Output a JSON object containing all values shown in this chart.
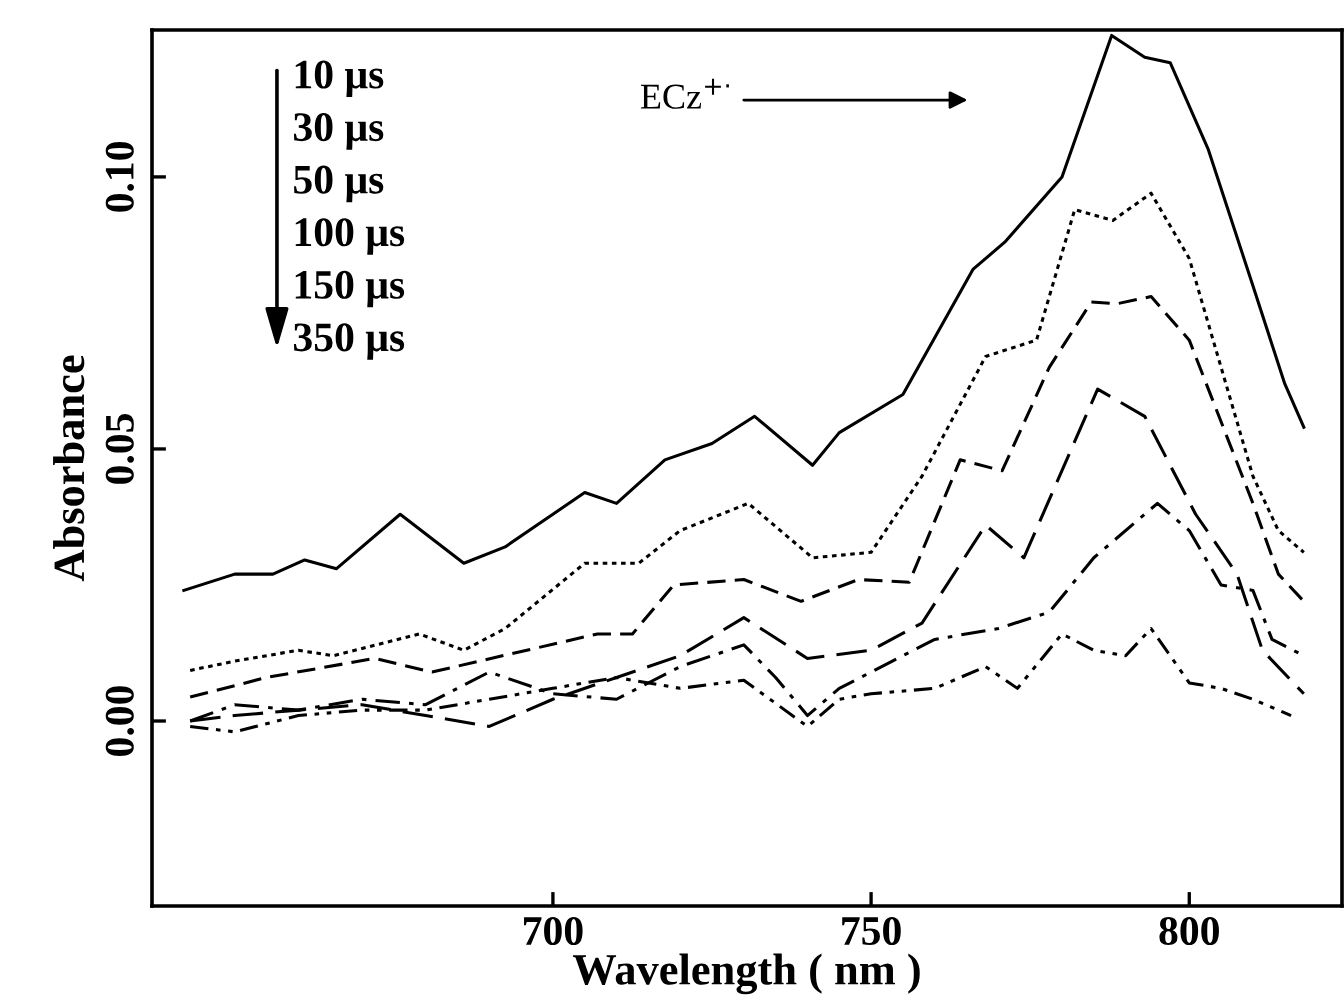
{
  "chart_data": {
    "type": "line",
    "xlabel": "Wavelength ( nm )",
    "ylabel": "Absorbance",
    "xlim": [
      637,
      824
    ],
    "ylim": [
      -0.034,
      0.127
    ],
    "xticks": [
      700,
      750,
      800
    ],
    "yticks": [
      {
        "value": 0,
        "label": "0.00"
      },
      {
        "value": 0.05,
        "label": "0.05"
      },
      {
        "value": 0.1,
        "label": "0.10"
      }
    ],
    "grid": false,
    "legend": false,
    "marker": "none",
    "annotations": [
      "10 μs",
      "30 μs",
      "50 μs",
      "100 μs",
      "150 μs",
      "350 μs",
      "ECz$^{+·}$"
    ],
    "series": [
      {
        "color": "#000000",
        "line_style": "solid",
        "x": [
          642,
          650,
          656,
          661,
          666,
          676,
          686,
          692.5,
          705,
          710,
          717.6,
          725,
          731.7,
          740.8,
          745,
          755,
          766,
          771,
          780,
          787.8,
          793,
          797,
          803,
          810,
          815,
          818
        ],
        "values": [
          0.024,
          0.027,
          0.027,
          0.0296,
          0.028,
          0.038,
          0.029,
          0.032,
          0.042,
          0.04,
          0.048,
          0.051,
          0.056,
          0.047,
          0.053,
          0.06,
          0.083,
          0.088,
          0.1,
          0.126,
          0.122,
          0.121,
          0.105,
          0.08,
          0.062,
          0.054
        ]
      },
      {
        "color": "#000000",
        "line_style": "dotted",
        "x": [
          643,
          650,
          660,
          665.5,
          679,
          686,
          692.5,
          705,
          713.5,
          720,
          730.7,
          740.8,
          750,
          758,
          768,
          776,
          782,
          788,
          794,
          800,
          805,
          810,
          814,
          818
        ],
        "values": [
          0.0093,
          0.011,
          0.013,
          0.012,
          0.016,
          0.013,
          0.017,
          0.029,
          0.029,
          0.035,
          0.04,
          0.03,
          0.031,
          0.045,
          0.067,
          0.07,
          0.094,
          0.092,
          0.097,
          0.085,
          0.065,
          0.045,
          0.035,
          0.031
        ]
      },
      {
        "color": "#000000",
        "line_style": "dashed",
        "x": [
          643,
          655,
          672,
          681,
          707,
          712.5,
          719,
          730,
          739,
          748,
          756,
          764,
          770.6,
          778,
          784.6,
          788.7,
          794,
          800,
          805,
          810,
          814,
          818
        ],
        "values": [
          0.0044,
          0.008,
          0.0115,
          0.009,
          0.016,
          0.016,
          0.025,
          0.026,
          0.022,
          0.026,
          0.0255,
          0.048,
          0.046,
          0.065,
          0.077,
          0.0767,
          0.078,
          0.07,
          0.055,
          0.04,
          0.027,
          0.022
        ]
      },
      {
        "color": "#000000",
        "line_style": "longdash",
        "x": [
          643,
          650,
          660,
          670,
          680,
          690,
          700,
          710,
          720,
          730,
          740,
          750,
          758,
          768,
          774,
          785.6,
          793,
          801,
          807.5,
          811.5,
          818
        ],
        "values": [
          0.0,
          0.001,
          0.002,
          0.003,
          0.001,
          -0.001,
          0.004,
          0.008,
          0.012,
          0.019,
          0.0115,
          0.013,
          0.018,
          0.036,
          0.03,
          0.061,
          0.056,
          0.038,
          0.027,
          0.013,
          0.005
        ]
      },
      {
        "color": "#000000",
        "line_style": "dashdot",
        "x": [
          643,
          650,
          660,
          670,
          680,
          690,
          700,
          710,
          720,
          730,
          735,
          740,
          745,
          750,
          760,
          770,
          778,
          785,
          795,
          800,
          805,
          810,
          813,
          818
        ],
        "values": [
          0.0,
          0.003,
          0.002,
          0.004,
          0.003,
          0.009,
          0.005,
          0.004,
          0.01,
          0.014,
          0.008,
          0.001,
          0.006,
          0.009,
          0.015,
          0.017,
          0.02,
          0.03,
          0.04,
          0.035,
          0.025,
          0.024,
          0.015,
          0.012
        ]
      },
      {
        "color": "#000000",
        "line_style": "dashdotdot",
        "x": [
          643,
          650,
          660,
          670,
          680,
          690,
          700,
          710,
          720,
          730,
          740,
          745,
          750,
          760,
          768,
          773,
          780,
          785,
          790,
          794,
          800,
          805,
          810,
          816
        ],
        "values": [
          -0.001,
          -0.002,
          0.001,
          0.002,
          0.002,
          0.004,
          0.006,
          0.008,
          0.006,
          0.0075,
          -0.001,
          0.004,
          0.005,
          0.006,
          0.01,
          0.006,
          0.016,
          0.013,
          0.012,
          0.017,
          0.007,
          0.006,
          0.004,
          0.001
        ]
      }
    ]
  }
}
